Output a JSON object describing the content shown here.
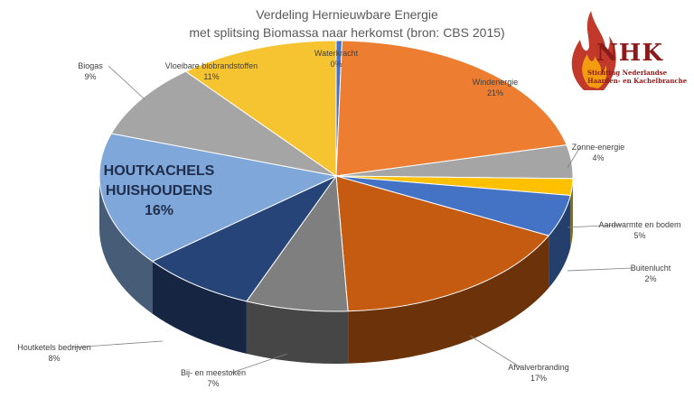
{
  "chart_data": {
    "type": "pie",
    "title": "Verdeling Hernieuwbare Energie",
    "subtitle": "met splitsing Biomassa naar herkomst (bron: CBS 2015)",
    "slices": [
      {
        "label": "Waterkracht",
        "value": 0,
        "pct": "0%",
        "color": "#4472c4"
      },
      {
        "label": "Windenergie",
        "value": 21,
        "pct": "21%",
        "color": "#ed7d31"
      },
      {
        "label": "Zonne-energie",
        "value": 4,
        "pct": "4%",
        "color": "#a5a5a5"
      },
      {
        "label": "Buitenlucht",
        "value": 2,
        "pct": "2%",
        "color": "#ffc000"
      },
      {
        "label": "Aardwarmte en bodem",
        "value": 5,
        "pct": "5%",
        "color": "#4472c4"
      },
      {
        "label": "Afvalverbranding",
        "value": 17,
        "pct": "17%",
        "color": "#c55a11"
      },
      {
        "label": "Bij- en meestoken",
        "value": 7,
        "pct": "7%",
        "color": "#7f7f7f"
      },
      {
        "label": "Houtketels bedrijven",
        "value": 8,
        "pct": "8%",
        "color": "#264478"
      },
      {
        "label": "HOUTKACHELS HUISHOUDENS",
        "value": 16,
        "pct": "16%",
        "color": "#7fa7d9"
      },
      {
        "label": "Biogas",
        "value": 9,
        "pct": "9%",
        "color": "#a5a5a5"
      },
      {
        "label": "Vloeibare biobrandstoffen",
        "value": 11,
        "pct": "11%",
        "color": "#f6c431"
      }
    ]
  },
  "logo": {
    "name": "NHK",
    "subtitle_line1": "Stichting Nederlandse",
    "subtitle_line2": "Haarden- en Kachelbranche"
  }
}
